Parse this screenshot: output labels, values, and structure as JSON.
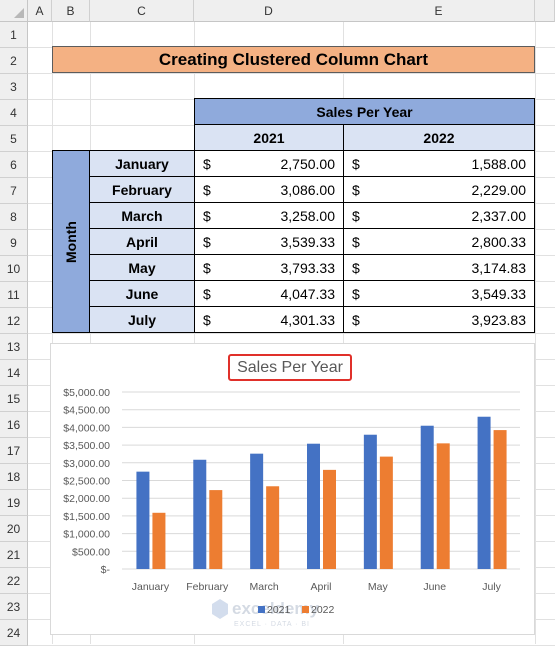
{
  "sheet": {
    "columns": [
      "A",
      "B",
      "C",
      "D",
      "E"
    ],
    "rows": [
      "1",
      "2",
      "3",
      "4",
      "5",
      "6",
      "7",
      "8",
      "9",
      "10",
      "11",
      "12",
      "13",
      "14",
      "15",
      "16",
      "17",
      "18",
      "19",
      "20",
      "21",
      "22",
      "23",
      "24"
    ]
  },
  "title": "Creating Clustered Column Chart",
  "table": {
    "group_header": "Sales Per Year",
    "year_headers": [
      "2021",
      "2022"
    ],
    "row_group_label": "Month",
    "currency_symbol": "$",
    "rows": [
      {
        "month": "January",
        "v2021": "2,750.00",
        "v2022": "1,588.00"
      },
      {
        "month": "February",
        "v2021": "3,086.00",
        "v2022": "2,229.00"
      },
      {
        "month": "March",
        "v2021": "3,258.00",
        "v2022": "2,337.00"
      },
      {
        "month": "April",
        "v2021": "3,539.33",
        "v2022": "2,800.33"
      },
      {
        "month": "May",
        "v2021": "3,793.33",
        "v2022": "3,174.83"
      },
      {
        "month": "June",
        "v2021": "4,047.33",
        "v2022": "3,549.33"
      },
      {
        "month": "July",
        "v2021": "4,301.33",
        "v2022": "3,923.83"
      }
    ]
  },
  "chart_data": {
    "type": "bar",
    "title": "Sales Per Year",
    "categories": [
      "January",
      "February",
      "March",
      "April",
      "May",
      "June",
      "July"
    ],
    "series": [
      {
        "name": "2021",
        "color": "#4472c4",
        "values": [
          2750.0,
          3086.0,
          3258.0,
          3539.33,
          3793.33,
          4047.33,
          4301.33
        ]
      },
      {
        "name": "2022",
        "color": "#ed7d31",
        "values": [
          1588.0,
          2229.0,
          2337.0,
          2800.33,
          3174.83,
          3549.33,
          3923.83
        ]
      }
    ],
    "ylim": [
      0,
      5000
    ],
    "yticks": [
      0,
      500,
      1000,
      1500,
      2000,
      2500,
      3000,
      3500,
      4000,
      4500,
      5000
    ],
    "ytick_labels": [
      "$-",
      "$500.00",
      "$1,000.00",
      "$1,500.00",
      "$2,000.00",
      "$2,500.00",
      "$3,000.00",
      "$3,500.00",
      "$4,000.00",
      "$4,500.00",
      "$5,000.00"
    ],
    "grid": true,
    "legend": "bottom"
  },
  "watermark": {
    "name": "exceldemy",
    "tagline": "EXCEL · DATA · BI"
  }
}
